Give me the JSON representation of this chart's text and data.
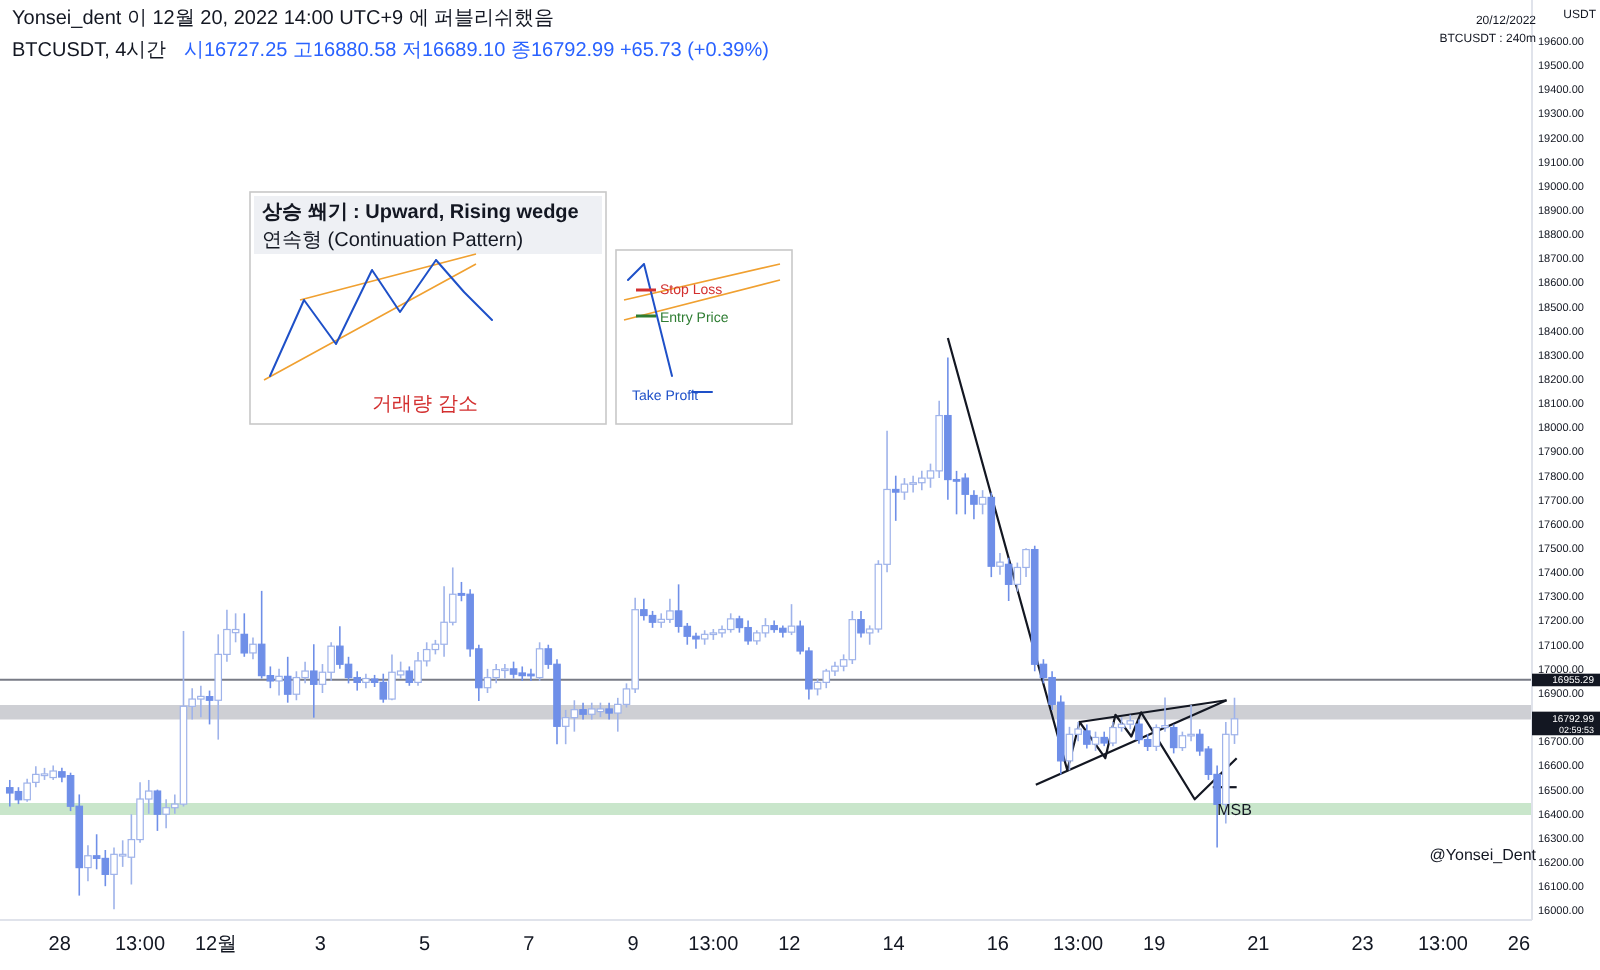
{
  "chart_data": {
    "type": "candlestick",
    "title": "BTCUSDT, 4시간",
    "ylabel": "USDT",
    "x": [
      "2022-11-27T01:00",
      "2022-11-27T05:00",
      "2022-11-27T09:00",
      "2022-11-27T13:00",
      "2022-11-27T17:00",
      "2022-11-27T21:00",
      "2022-11-28T01:00",
      "2022-11-28T05:00",
      "2022-11-28T09:00",
      "2022-11-28T13:00",
      "2022-11-28T17:00",
      "2022-11-28T21:00",
      "2022-11-29T01:00",
      "2022-11-29T05:00",
      "2022-11-29T09:00",
      "2022-11-29T13:00",
      "2022-11-29T17:00",
      "2022-11-29T21:00",
      "2022-11-30T01:00",
      "2022-11-30T05:00",
      "2022-11-30T09:00",
      "2022-11-30T13:00",
      "2022-11-30T17:00",
      "2022-11-30T21:00",
      "2022-12-01T01:00",
      "2022-12-01T05:00",
      "2022-12-01T09:00",
      "2022-12-01T13:00",
      "2022-12-01T17:00",
      "2022-12-01T21:00",
      "2022-12-02T01:00",
      "2022-12-02T05:00",
      "2022-12-02T09:00",
      "2022-12-02T13:00",
      "2022-12-02T17:00",
      "2022-12-02T21:00",
      "2022-12-03T01:00",
      "2022-12-03T05:00",
      "2022-12-03T09:00",
      "2022-12-03T13:00",
      "2022-12-03T17:00",
      "2022-12-03T21:00",
      "2022-12-04T01:00",
      "2022-12-04T05:00",
      "2022-12-04T09:00",
      "2022-12-04T13:00",
      "2022-12-04T17:00",
      "2022-12-04T21:00",
      "2022-12-05T01:00",
      "2022-12-05T05:00",
      "2022-12-05T09:00",
      "2022-12-05T13:00",
      "2022-12-05T17:00",
      "2022-12-05T21:00",
      "2022-12-06T01:00",
      "2022-12-06T05:00",
      "2022-12-06T09:00",
      "2022-12-06T13:00",
      "2022-12-06T17:00",
      "2022-12-06T21:00",
      "2022-12-07T01:00",
      "2022-12-07T05:00",
      "2022-12-07T09:00",
      "2022-12-07T13:00",
      "2022-12-07T17:00",
      "2022-12-07T21:00",
      "2022-12-08T01:00",
      "2022-12-08T05:00",
      "2022-12-08T09:00",
      "2022-12-08T13:00",
      "2022-12-08T17:00",
      "2022-12-08T21:00",
      "2022-12-09T01:00",
      "2022-12-09T05:00",
      "2022-12-09T09:00",
      "2022-12-09T13:00",
      "2022-12-09T17:00",
      "2022-12-09T21:00",
      "2022-12-10T01:00",
      "2022-12-10T05:00",
      "2022-12-10T09:00",
      "2022-12-10T13:00",
      "2022-12-10T17:00",
      "2022-12-10T21:00",
      "2022-12-11T01:00",
      "2022-12-11T05:00",
      "2022-12-11T09:00",
      "2022-12-11T13:00",
      "2022-12-11T17:00",
      "2022-12-11T21:00",
      "2022-12-12T01:00",
      "2022-12-12T05:00",
      "2022-12-12T09:00",
      "2022-12-12T13:00",
      "2022-12-12T17:00",
      "2022-12-12T21:00",
      "2022-12-13T01:00",
      "2022-12-13T05:00",
      "2022-12-13T09:00",
      "2022-12-13T13:00",
      "2022-12-13T17:00",
      "2022-12-13T21:00",
      "2022-12-14T01:00",
      "2022-12-14T05:00",
      "2022-12-14T09:00",
      "2022-12-14T13:00",
      "2022-12-14T17:00",
      "2022-12-14T21:00",
      "2022-12-15T01:00",
      "2022-12-15T05:00",
      "2022-12-15T09:00",
      "2022-12-15T13:00",
      "2022-12-15T17:00",
      "2022-12-15T21:00",
      "2022-12-16T01:00",
      "2022-12-16T05:00",
      "2022-12-16T09:00",
      "2022-12-16T13:00",
      "2022-12-16T17:00",
      "2022-12-16T21:00",
      "2022-12-17T01:00",
      "2022-12-17T05:00",
      "2022-12-17T09:00",
      "2022-12-17T13:00",
      "2022-12-17T17:00",
      "2022-12-17T21:00",
      "2022-12-18T01:00",
      "2022-12-18T05:00",
      "2022-12-18T09:00",
      "2022-12-18T13:00",
      "2022-12-18T17:00",
      "2022-12-18T21:00",
      "2022-12-19T01:00",
      "2022-12-19T05:00",
      "2022-12-19T09:00",
      "2022-12-19T13:00",
      "2022-12-19T17:00",
      "2022-12-19T21:00",
      "2022-12-20T01:00",
      "2022-12-20T05:00",
      "2022-12-20T09:00",
      "2022-12-20T13:00"
    ],
    "ohlc": [
      [
        16508,
        16540,
        16430,
        16486
      ],
      [
        16492,
        16510,
        16440,
        16458
      ],
      [
        16458,
        16545,
        16450,
        16527
      ],
      [
        16530,
        16597,
        16510,
        16563
      ],
      [
        16558,
        16590,
        16540,
        16565
      ],
      [
        16550,
        16600,
        16540,
        16577
      ],
      [
        16574,
        16590,
        16530,
        16552
      ],
      [
        16558,
        16570,
        16411,
        16431
      ],
      [
        16431,
        16480,
        16061,
        16177
      ],
      [
        16177,
        16270,
        16120,
        16226
      ],
      [
        16226,
        16315,
        16170,
        16215
      ],
      [
        16215,
        16250,
        16100,
        16149
      ],
      [
        16149,
        16260,
        16005,
        16232
      ],
      [
        16225,
        16290,
        16180,
        16232
      ],
      [
        16220,
        16398,
        16107,
        16293
      ],
      [
        16293,
        16530,
        16280,
        16461
      ],
      [
        16461,
        16540,
        16400,
        16494
      ],
      [
        16494,
        16500,
        16329,
        16398
      ],
      [
        16398,
        16460,
        16340,
        16425
      ],
      [
        16425,
        16480,
        16400,
        16440
      ],
      [
        16440,
        17157,
        16430,
        16845
      ],
      [
        16845,
        16920,
        16790,
        16875
      ],
      [
        16875,
        16930,
        16800,
        16886
      ],
      [
        16885,
        16910,
        16770,
        16870
      ],
      [
        16870,
        17143,
        16707,
        17060
      ],
      [
        17060,
        17245,
        17030,
        17163
      ],
      [
        17150,
        17230,
        17110,
        17163
      ],
      [
        17143,
        17230,
        17050,
        17066
      ],
      [
        17066,
        17130,
        17040,
        17102
      ],
      [
        17102,
        17323,
        16960,
        16972
      ],
      [
        16972,
        17010,
        16920,
        16950
      ],
      [
        16950,
        17000,
        16890,
        16969
      ],
      [
        16969,
        17050,
        16860,
        16895
      ],
      [
        16895,
        16990,
        16870,
        16964
      ],
      [
        16964,
        17030,
        16940,
        16991
      ],
      [
        16991,
        17102,
        16798,
        16936
      ],
      [
        16936,
        17020,
        16900,
        16986
      ],
      [
        16986,
        17110,
        16950,
        17094
      ],
      [
        17094,
        17176,
        17000,
        17019
      ],
      [
        17019,
        17050,
        16940,
        16964
      ],
      [
        16964,
        16990,
        16910,
        16944
      ],
      [
        16944,
        16980,
        16920,
        16960
      ],
      [
        16958,
        16975,
        16925,
        16944
      ],
      [
        16944,
        16980,
        16860,
        16875
      ],
      [
        16875,
        17060,
        16870,
        16986
      ],
      [
        16975,
        17030,
        16960,
        16991
      ],
      [
        16991,
        17010,
        16930,
        16944
      ],
      [
        16944,
        17070,
        16930,
        17033
      ],
      [
        17033,
        17110,
        17010,
        17080
      ],
      [
        17080,
        17120,
        17060,
        17102
      ],
      [
        17102,
        17342,
        17050,
        17193
      ],
      [
        17193,
        17420,
        17180,
        17309
      ],
      [
        17312,
        17360,
        17280,
        17305
      ],
      [
        17309,
        17330,
        17050,
        17083
      ],
      [
        17083,
        17100,
        16867,
        16922
      ],
      [
        16922,
        17000,
        16900,
        16964
      ],
      [
        16964,
        17020,
        16940,
        16997
      ],
      [
        16997,
        17020,
        16960,
        17000
      ],
      [
        17000,
        17030,
        16960,
        16978
      ],
      [
        16983,
        17010,
        16950,
        16972
      ],
      [
        16978,
        17000,
        16950,
        16975
      ],
      [
        16964,
        17110,
        16950,
        17083
      ],
      [
        17083,
        17100,
        17000,
        17019
      ],
      [
        17019,
        17040,
        16688,
        16762
      ],
      [
        16762,
        16830,
        16688,
        16798
      ],
      [
        16798,
        16870,
        16740,
        16831
      ],
      [
        16831,
        16860,
        16790,
        16812
      ],
      [
        16812,
        16860,
        16790,
        16834
      ],
      [
        16823,
        16860,
        16800,
        16834
      ],
      [
        16834,
        16860,
        16790,
        16817
      ],
      [
        16817,
        16880,
        16740,
        16853
      ],
      [
        16853,
        16940,
        16840,
        16917
      ],
      [
        16917,
        17295,
        16900,
        17245
      ],
      [
        17245,
        17290,
        17200,
        17221
      ],
      [
        17221,
        17240,
        17170,
        17193
      ],
      [
        17193,
        17230,
        17170,
        17205
      ],
      [
        17205,
        17290,
        17190,
        17240
      ],
      [
        17240,
        17350,
        17150,
        17176
      ],
      [
        17176,
        17190,
        17100,
        17135
      ],
      [
        17135,
        17150,
        17083,
        17124
      ],
      [
        17124,
        17160,
        17100,
        17143
      ],
      [
        17143,
        17165,
        17120,
        17149
      ],
      [
        17149,
        17180,
        17130,
        17163
      ],
      [
        17163,
        17230,
        17150,
        17207
      ],
      [
        17207,
        17220,
        17150,
        17171
      ],
      [
        17171,
        17200,
        17100,
        17116
      ],
      [
        17116,
        17160,
        17100,
        17149
      ],
      [
        17149,
        17210,
        17130,
        17179
      ],
      [
        17179,
        17200,
        17150,
        17163
      ],
      [
        17168,
        17180,
        17130,
        17152
      ],
      [
        17152,
        17268,
        17140,
        17177
      ],
      [
        17177,
        17200,
        17060,
        17074
      ],
      [
        17074,
        17090,
        16873,
        16917
      ],
      [
        16917,
        16960,
        16890,
        16944
      ],
      [
        16944,
        17000,
        16920,
        16991
      ],
      [
        16991,
        17030,
        16970,
        17011
      ],
      [
        17011,
        17060,
        16990,
        17038
      ],
      [
        17038,
        17240,
        17020,
        17204
      ],
      [
        17204,
        17240,
        17130,
        17149
      ],
      [
        17149,
        17180,
        17100,
        17165
      ],
      [
        17165,
        17450,
        17150,
        17433
      ],
      [
        17433,
        17986,
        17400,
        17743
      ],
      [
        17743,
        17800,
        17613,
        17732
      ],
      [
        17732,
        17790,
        17700,
        17765
      ],
      [
        17765,
        17800,
        17730,
        17771
      ],
      [
        17771,
        17820,
        17740,
        17790
      ],
      [
        17790,
        17850,
        17750,
        17820
      ],
      [
        17820,
        18110,
        17790,
        18049
      ],
      [
        18049,
        18290,
        17700,
        17784
      ],
      [
        17784,
        17820,
        17640,
        17779
      ],
      [
        17790,
        17810,
        17640,
        17723
      ],
      [
        17718,
        17740,
        17620,
        17682
      ],
      [
        17682,
        17740,
        17640,
        17710
      ],
      [
        17710,
        17730,
        17380,
        17425
      ],
      [
        17425,
        17480,
        17390,
        17442
      ],
      [
        17433,
        17460,
        17281,
        17350
      ],
      [
        17350,
        17440,
        17320,
        17420
      ],
      [
        17420,
        17500,
        17380,
        17494
      ],
      [
        17494,
        17510,
        16990,
        17019
      ],
      [
        17019,
        17040,
        16940,
        16964
      ],
      [
        16964,
        16990,
        16830,
        16853
      ],
      [
        16862,
        16890,
        16563,
        16619
      ],
      [
        16619,
        16760,
        16580,
        16729
      ],
      [
        16729,
        16780,
        16700,
        16751
      ],
      [
        16743,
        16770,
        16670,
        16688
      ],
      [
        16688,
        16740,
        16660,
        16716
      ],
      [
        16716,
        16740,
        16680,
        16693
      ],
      [
        16693,
        16780,
        16680,
        16757
      ],
      [
        16757,
        16800,
        16740,
        16771
      ],
      [
        16771,
        16810,
        16750,
        16785
      ],
      [
        16771,
        16790,
        16690,
        16707
      ],
      [
        16707,
        16730,
        16660,
        16679
      ],
      [
        16679,
        16770,
        16660,
        16757
      ],
      [
        16757,
        16881,
        16740,
        16765
      ],
      [
        16757,
        16770,
        16650,
        16674
      ],
      [
        16674,
        16740,
        16660,
        16723
      ],
      [
        16723,
        16850,
        16700,
        16729
      ],
      [
        16729,
        16750,
        16640,
        16660
      ],
      [
        16668,
        16680,
        16540,
        16563
      ],
      [
        16563,
        16600,
        16260,
        16439
      ],
      [
        16439,
        16780,
        16360,
        16729
      ],
      [
        16727.25,
        16880.58,
        16689.1,
        16792.99
      ]
    ],
    "series": [
      {
        "type": "line",
        "color": "#131722",
        "x": [
          "2022-12-15T01:00",
          "2022-12-17T08:00",
          "2022-12-17T13:40",
          "2022-12-18T01:30",
          "2022-12-18T06:10",
          "2022-12-18T13:30",
          "2022-12-18T18:00",
          "2022-12-19T18:40",
          "2022-12-20T14:00"
        ],
        "values": [
          18370,
          16580,
          16780,
          16630,
          16810,
          16720,
          16820,
          16460,
          16630
        ]
      },
      {
        "type": "line",
        "color": "#131722",
        "x": [
          "2022-12-16T17:30",
          "2022-12-20T09:20"
        ],
        "values": [
          16520,
          16870
        ]
      },
      {
        "type": "line",
        "color": "#131722",
        "x": [
          "2022-12-17T13:40",
          "2022-12-20T09:20"
        ],
        "values": [
          16780,
          16870
        ]
      },
      {
        "type": "line",
        "color": "#131722",
        "x": [
          "2022-12-20T03:00",
          "2022-12-20T14:00"
        ],
        "values": [
          16510,
          16510
        ]
      }
    ],
    "xlim": [
      "2022-11-26T20:30",
      "2022-12-26T06:00"
    ],
    "xticks": [
      {
        "value": "2022-11-28T00:00",
        "label": "28"
      },
      {
        "value": "2022-11-29T13:00",
        "label": "13:00"
      },
      {
        "value": "2022-12-01T00:00",
        "label": "12월"
      },
      {
        "value": "2022-12-03T00:00",
        "label": "3"
      },
      {
        "value": "2022-12-05T00:00",
        "label": "5"
      },
      {
        "value": "2022-12-07T00:00",
        "label": "7"
      },
      {
        "value": "2022-12-09T00:00",
        "label": "9"
      },
      {
        "value": "2022-12-10T13:00",
        "label": "13:00"
      },
      {
        "value": "2022-12-12T00:00",
        "label": "12"
      },
      {
        "value": "2022-12-14T00:00",
        "label": "14"
      },
      {
        "value": "2022-12-16T00:00",
        "label": "16"
      },
      {
        "value": "2022-12-17T13:00",
        "label": "13:00"
      },
      {
        "value": "2022-12-19T00:00",
        "label": "19"
      },
      {
        "value": "2022-12-21T00:00",
        "label": "21"
      },
      {
        "value": "2022-12-23T00:00",
        "label": "23"
      },
      {
        "value": "2022-12-24T13:00",
        "label": "13:00"
      },
      {
        "value": "2022-12-26T00:00",
        "label": "26"
      }
    ],
    "ylim": [
      15960,
      19770
    ],
    "yticks": [
      {
        "value": 16000,
        "label": "16000.00"
      },
      {
        "value": 16100,
        "label": "16100.00"
      },
      {
        "value": 16200,
        "label": "16200.00"
      },
      {
        "value": 16300,
        "label": "16300.00"
      },
      {
        "value": 16400,
        "label": "16400.00"
      },
      {
        "value": 16500,
        "label": "16500.00"
      },
      {
        "value": 16600,
        "label": "16600.00"
      },
      {
        "value": 16700,
        "label": "16700.00"
      },
      {
        "value": 16900,
        "label": "16900.00"
      },
      {
        "value": 17000,
        "label": "17000.00"
      },
      {
        "value": 17100,
        "label": "17100.00"
      },
      {
        "value": 17200,
        "label": "17200.00"
      },
      {
        "value": 17300,
        "label": "17300.00"
      },
      {
        "value": 17400,
        "label": "17400.00"
      },
      {
        "value": 17500,
        "label": "17500.00"
      },
      {
        "value": 17600,
        "label": "17600.00"
      },
      {
        "value": 17700,
        "label": "17700.00"
      },
      {
        "value": 17800,
        "label": "17800.00"
      },
      {
        "value": 17900,
        "label": "17900.00"
      },
      {
        "value": 18000,
        "label": "18000.00"
      },
      {
        "value": 18100,
        "label": "18100.00"
      },
      {
        "value": 18200,
        "label": "18200.00"
      },
      {
        "value": 18300,
        "label": "18300.00"
      },
      {
        "value": 18400,
        "label": "18400.00"
      },
      {
        "value": 18500,
        "label": "18500.00"
      },
      {
        "value": 18600,
        "label": "18600.00"
      },
      {
        "value": 18700,
        "label": "18700.00"
      },
      {
        "value": 18800,
        "label": "18800.00"
      },
      {
        "value": 18900,
        "label": "18900.00"
      },
      {
        "value": 19000,
        "label": "19000.00"
      },
      {
        "value": 19100,
        "label": "19100.00"
      },
      {
        "value": 19200,
        "label": "19200.00"
      },
      {
        "value": 19300,
        "label": "19300.00"
      },
      {
        "value": 19400,
        "label": "19400.00"
      },
      {
        "value": 19500,
        "label": "19500.00"
      },
      {
        "value": 19600,
        "label": "19600.00"
      }
    ],
    "ref_lines": [
      {
        "axis": "y",
        "value": 16955.29,
        "label": "16955.29",
        "color": "#787b86"
      }
    ],
    "bands": [
      {
        "axis": "y",
        "from": 16790,
        "to": 16850,
        "color": "#c9cacf"
      },
      {
        "axis": "y",
        "from": 16395,
        "to": 16445,
        "color": "#c3e3c5"
      }
    ],
    "annotations": [
      "Yonsei_dent 이 12월 20, 2022 14:00 UTC+9 에 퍼블리쉬했음",
      "시16727.25 고16880.58 저16689.10 종16792.99 +65.73 (+0.39%)",
      "20/12/2022",
      "BTCUSDT : 240m",
      "@Yonsei_Dent",
      "상승 쐐기 : Upward, Rising wedge",
      "연속형 (Continuation Pattern)",
      "거래량 감소",
      "Stop Loss",
      "Entry Price",
      "Take Profit",
      "16792.99",
      "02:59:53",
      {
        "text": "MSB",
        "x": "2022-12-20T13:00",
        "y": 16420
      }
    ]
  }
}
